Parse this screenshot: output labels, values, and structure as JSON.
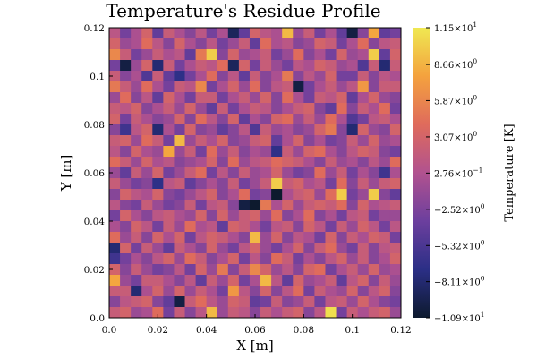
{
  "chart_data": {
    "type": "heatmap",
    "title": "Temperature's Residue Profile",
    "xlabel": "X [m]",
    "ylabel": "Y [m]",
    "xlim": [
      0.0,
      0.12
    ],
    "ylim": [
      0.0,
      0.12
    ],
    "x_tick_labels": [
      "0.0",
      "0.02",
      "0.04",
      "0.06",
      "0.08",
      "0.1",
      "0.12"
    ],
    "y_tick_labels": [
      "0.0",
      "0.02",
      "0.04",
      "0.06",
      "0.08",
      "0.1",
      "0.12"
    ],
    "grid_rows": 27,
    "grid_cols": 27,
    "colorbar": {
      "label": "Temperature [K]",
      "range": [
        -10.9,
        11.5
      ],
      "tick_labels": [
        {
          "value": 11.5,
          "mantissa": "1.15",
          "exponent": "1"
        },
        {
          "value": 8.66,
          "mantissa": "8.66",
          "exponent": "0"
        },
        {
          "value": 5.87,
          "mantissa": "5.87",
          "exponent": "0"
        },
        {
          "value": 3.07,
          "mantissa": "3.07",
          "exponent": "0"
        },
        {
          "value": 0.276,
          "mantissa": "2.76",
          "exponent": "−1"
        },
        {
          "value": -2.52,
          "mantissa": "−2.52",
          "exponent": "0"
        },
        {
          "value": -5.32,
          "mantissa": "−5.32",
          "exponent": "0"
        },
        {
          "value": -8.11,
          "mantissa": "−8.11",
          "exponent": "0"
        },
        {
          "value": -10.9,
          "mantissa": "−1.09",
          "exponent": "1"
        }
      ],
      "colormap": [
        "#0d1a2e",
        "#2b2f86",
        "#6c3f9e",
        "#b1528f",
        "#df6b5c",
        "#f4a23e",
        "#efe852"
      ]
    },
    "values_note": "",
    "rows": [
      [
        1,
        -3,
        0,
        3,
        -4,
        2,
        0,
        -2,
        1,
        -3,
        0,
        -9,
        -4,
        3,
        1,
        0,
        9,
        -1,
        2,
        -3,
        0,
        -4,
        -10,
        -2,
        8,
        -4,
        -3
      ],
      [
        3,
        -1,
        0,
        4,
        1,
        -2,
        3,
        0,
        -2,
        1,
        -3,
        -1,
        2,
        -4,
        4,
        0,
        1,
        -2,
        -1,
        3,
        2,
        -3,
        0,
        4,
        -2,
        1,
        2
      ],
      [
        6,
        2,
        -3,
        -1,
        2,
        0,
        1,
        -4,
        5,
        10,
        -2,
        3,
        -1,
        0,
        2,
        -3,
        -1,
        4,
        -2,
        0,
        -3,
        3,
        -1,
        0,
        10,
        -4,
        3
      ],
      [
        -3,
        -10,
        -1,
        3,
        -8,
        2,
        -3,
        0,
        2,
        1,
        4,
        -9,
        3,
        -3,
        2,
        -1,
        -3,
        1,
        0,
        3,
        2,
        -1,
        0,
        -5,
        2,
        -8,
        2
      ],
      [
        2,
        -2,
        0,
        -5,
        2,
        -4,
        -7,
        -3,
        0,
        4,
        -2,
        1,
        -4,
        2,
        -2,
        0,
        5,
        -2,
        1,
        -1,
        3,
        -3,
        -3,
        2,
        -2,
        1,
        0
      ],
      [
        5,
        2,
        -1,
        4,
        0,
        -3,
        2,
        1,
        6,
        -3,
        0,
        3,
        -1,
        4,
        -2,
        1,
        2,
        -10,
        -3,
        0,
        2,
        -1,
        1,
        7,
        -2,
        2,
        2
      ],
      [
        -1,
        4,
        -2,
        1,
        -4,
        3,
        0,
        -3,
        2,
        2,
        -3,
        0,
        2,
        -1,
        3,
        -2,
        4,
        0,
        -3,
        2,
        1,
        3,
        -4,
        0,
        3,
        -1,
        -2
      ],
      [
        2,
        1,
        3,
        -2,
        0,
        2,
        -1,
        3,
        -1,
        -4,
        2,
        -3,
        0,
        2,
        1,
        -2,
        0,
        2,
        3,
        -2,
        -4,
        4,
        -2,
        2,
        0,
        4,
        -3
      ],
      [
        3,
        -3,
        2,
        0,
        -2,
        -1,
        3,
        -2,
        4,
        1,
        -2,
        3,
        -4,
        0,
        -2,
        3,
        4,
        -1,
        2,
        -1,
        4,
        0,
        -5,
        -3,
        1,
        2,
        0
      ],
      [
        -2,
        -6,
        1,
        3,
        -8,
        0,
        -3,
        3,
        -2,
        -1,
        -4,
        -2,
        1,
        -5,
        2,
        -1,
        0,
        -2,
        -1,
        3,
        5,
        -2,
        -8,
        3,
        -1,
        -2,
        3
      ],
      [
        2,
        3,
        -1,
        4,
        2,
        -3,
        9,
        -1,
        2,
        0,
        3,
        -2,
        -1,
        2,
        3,
        -4,
        0,
        3,
        -2,
        0,
        -3,
        -2,
        2,
        -1,
        3,
        -1,
        0
      ],
      [
        1,
        -2,
        3,
        0,
        -1,
        8,
        -1,
        2,
        -3,
        4,
        -1,
        2,
        -2,
        0,
        -1,
        -7,
        2,
        -1,
        3,
        4,
        0,
        -2,
        1,
        3,
        2,
        -2,
        -3
      ],
      [
        4,
        2,
        -1,
        3,
        0,
        1,
        -2,
        -1,
        0,
        3,
        -2,
        4,
        -1,
        1,
        2,
        4,
        3,
        2,
        0,
        -2,
        2,
        -1,
        0,
        -2,
        1,
        -1,
        4
      ],
      [
        -1,
        -4,
        2,
        -1,
        3,
        -3,
        -1,
        2,
        4,
        -3,
        1,
        -2,
        2,
        -1,
        0,
        3,
        -1,
        -3,
        -2,
        4,
        -1,
        2,
        -3,
        0,
        -2,
        -6,
        0
      ],
      [
        2,
        -1,
        -3,
        -2,
        -7,
        1,
        2,
        -4,
        -2,
        0,
        -2,
        2,
        -3,
        -1,
        2,
        10,
        2,
        3,
        0,
        1,
        -3,
        4,
        -2,
        2,
        -1,
        2,
        3
      ],
      [
        -2,
        3,
        1,
        0,
        3,
        -2,
        -3,
        -1,
        1,
        3,
        -2,
        0,
        4,
        -3,
        -2,
        -11,
        0,
        2,
        3,
        -1,
        4,
        10,
        -3,
        -1,
        10,
        -2,
        -4
      ],
      [
        1,
        -2,
        -3,
        2,
        -1,
        -3,
        -2,
        2,
        -3,
        1,
        2,
        -2,
        -10,
        -11,
        5,
        0,
        3,
        -1,
        2,
        3,
        2,
        4,
        -2,
        3,
        0,
        1,
        2
      ],
      [
        -3,
        3,
        0,
        -2,
        1,
        2,
        0,
        -1,
        3,
        -2,
        3,
        -1,
        2,
        3,
        -1,
        4,
        -2,
        0,
        4,
        -2,
        0,
        -3,
        1,
        2,
        -3,
        -1,
        -1
      ],
      [
        0,
        -2,
        3,
        1,
        -3,
        2,
        -1,
        4,
        0,
        1,
        -4,
        3,
        2,
        0,
        -3,
        1,
        2,
        -2,
        3,
        1,
        -3,
        2,
        -1,
        3,
        1,
        -3,
        1
      ],
      [
        4,
        -1,
        2,
        -2,
        3,
        0,
        3,
        -3,
        1,
        3,
        2,
        0,
        -2,
        9,
        -1,
        3,
        -2,
        1,
        0,
        -3,
        3,
        -2,
        2,
        0,
        3,
        2,
        -3
      ],
      [
        -8,
        3,
        -3,
        2,
        -1,
        -4,
        2,
        0,
        -2,
        3,
        -1,
        -3,
        1,
        3,
        -1,
        -3,
        0,
        3,
        -2,
        2,
        4,
        -1,
        -3,
        2,
        -2,
        1,
        2
      ],
      [
        -6,
        -3,
        0,
        -2,
        1,
        3,
        -1,
        4,
        2,
        -2,
        0,
        3,
        -3,
        1,
        -2,
        4,
        2,
        -3,
        0,
        -2,
        1,
        3,
        -1,
        2,
        -2,
        0,
        3
      ],
      [
        3,
        -2,
        2,
        -1,
        -3,
        -2,
        1,
        -3,
        3,
        -1,
        5,
        -2,
        2,
        6,
        3,
        -1,
        1,
        -2,
        3,
        4,
        -3,
        0,
        2,
        -1,
        3,
        -1,
        0
      ],
      [
        8,
        -1,
        -3,
        2,
        2,
        0,
        -2,
        1,
        -4,
        2,
        -1,
        3,
        -3,
        0,
        9,
        1,
        -4,
        3,
        -1,
        0,
        2,
        -4,
        1,
        3,
        -2,
        2,
        -1
      ],
      [
        2,
        2,
        -8,
        0,
        3,
        -1,
        3,
        -1,
        2,
        0,
        -3,
        7,
        1,
        -2,
        3,
        -2,
        1,
        4,
        -3,
        2,
        0,
        -1,
        3,
        -2,
        1,
        3,
        -2
      ],
      [
        -2,
        1,
        2,
        3,
        -2,
        -4,
        -10,
        2,
        4,
        1,
        -1,
        3,
        2,
        -4,
        -3,
        2,
        -2,
        -1,
        2,
        -3,
        1,
        2,
        -1,
        3,
        0,
        -2,
        -3
      ],
      [
        2,
        3,
        -1,
        0,
        4,
        -3,
        2,
        -2,
        1,
        9,
        -1,
        2,
        1,
        -2,
        2,
        0,
        2,
        3,
        -2,
        1,
        11,
        -3,
        2,
        0,
        2,
        3,
        -1
      ]
    ]
  }
}
